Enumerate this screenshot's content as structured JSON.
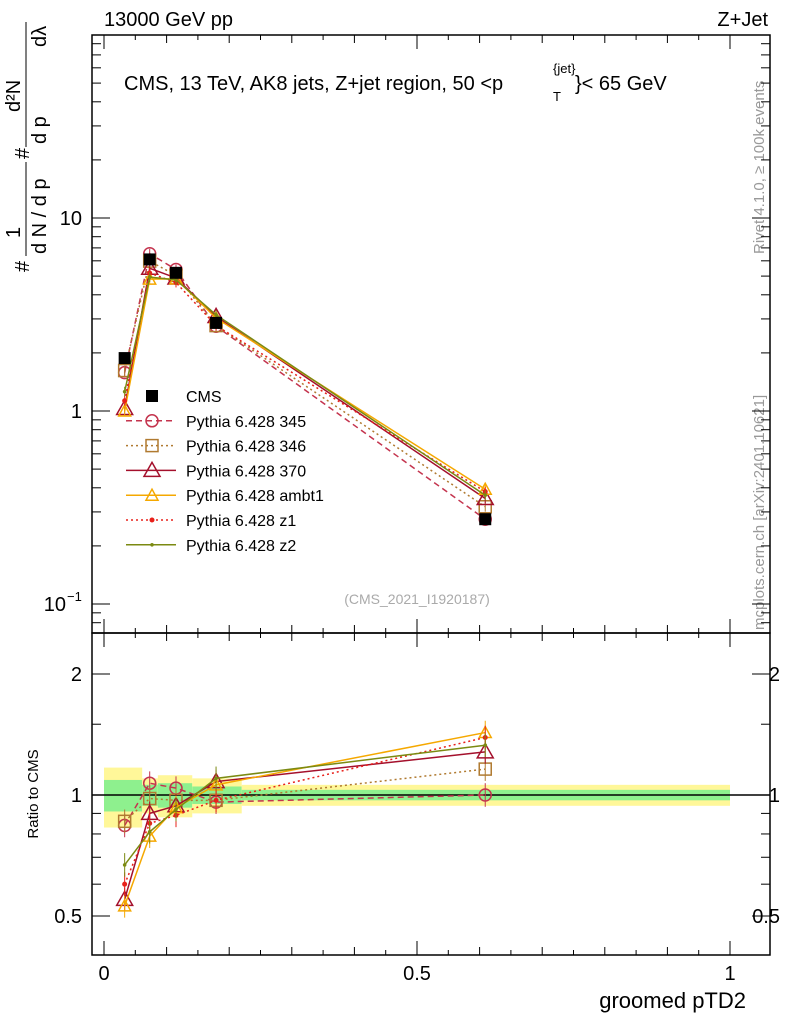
{
  "header": {
    "left": "13000 GeV pp",
    "right": "Z+Jet"
  },
  "side_text": {
    "rivet": "Rivet 4.1.0, ≥ 100k events",
    "mcplots": "mcplots.cern.ch [arXiv:2401.10621]"
  },
  "chart_data": {
    "type": "line",
    "title": "CMS, 13 TeV, AK8 jets, Z+jet region, 50 <p_T^{jet}< 65 GeV",
    "title_parts": {
      "main": "CMS, 13 TeV, AK8 jets, Z+jet region, 50 <p",
      "sup": "{jet}",
      "sub": "T",
      "end": "}< 65 GeV"
    },
    "watermark": "(CMS_2021_I1920187)",
    "xlabel": "groomed pTD2",
    "ylabel": "1/dN/dp_T d²N/dp_T dλ",
    "ylabel_parts": {
      "hash": "#",
      "one": "1",
      "den": "d N / d p",
      "sub_T": "T",
      "num": "d²N",
      "den2": "d p",
      "dl": "dλ"
    },
    "ratio_ylabel": "Ratio to CMS",
    "xlim": [
      -0.02,
      1.02
    ],
    "ylim": [
      0.0708,
      88.7
    ],
    "yscale": "log",
    "ratio_ylim": [
      0.4,
      2.52
    ],
    "x_ticks": [
      {
        "v": 0,
        "label": "0"
      },
      {
        "v": 0.5,
        "label": "0.5"
      },
      {
        "v": 1,
        "label": "1"
      }
    ],
    "y_ticks": [
      {
        "v": 10,
        "label": "10"
      },
      {
        "v": 1,
        "label": "1"
      },
      {
        "v": 0.1,
        "label": "10",
        "exp": "−1"
      }
    ],
    "ratio_ticks": [
      {
        "v": 2,
        "label": "2"
      },
      {
        "v": 1,
        "label": "1"
      },
      {
        "v": 0.5,
        "label": "0.5"
      }
    ],
    "bin_edges": [
      0,
      0.061,
      0.086,
      0.141,
      0.22,
      1.0
    ],
    "x": [
      0.033,
      0.073,
      0.115,
      0.179,
      0.609
    ],
    "band_total_rel": [
      0.17,
      0.1,
      0.12,
      0.1,
      0.06
    ],
    "band_stat_rel": [
      0.09,
      0.06,
      0.07,
      0.05,
      0.03
    ],
    "legend_placement": "center-left",
    "series": [
      {
        "name": "CMS",
        "color": "#000000",
        "dash": "",
        "marker": "square-filled",
        "values": [
          1.88,
          6.1,
          5.2,
          2.86,
          0.275
        ],
        "ratio": [
          1,
          1,
          1,
          1,
          1
        ]
      },
      {
        "name": "Pythia 6.428 345",
        "color": "#c4344e",
        "dash": "6,4",
        "marker": "circle",
        "values": [
          1.58,
          6.53,
          5.41,
          2.75,
          0.275
        ],
        "ratio": [
          0.84,
          1.07,
          1.04,
          0.96,
          1.0
        ]
      },
      {
        "name": "Pythia 6.428 346",
        "color": "#b07a30",
        "dash": "2,3",
        "marker": "square",
        "values": [
          1.62,
          5.98,
          5.04,
          2.77,
          0.319
        ],
        "ratio": [
          0.86,
          0.98,
          0.97,
          0.97,
          1.16
        ]
      },
      {
        "name": "Pythia 6.428 370",
        "color": "#a4102c",
        "dash": "",
        "marker": "triangle",
        "values": [
          1.03,
          5.49,
          4.89,
          3.09,
          0.352
        ],
        "ratio": [
          0.55,
          0.9,
          0.94,
          1.08,
          1.28
        ]
      },
      {
        "name": "Pythia 6.428 ambt1",
        "color": "#f5a800",
        "dash": "",
        "marker": "triangle-small",
        "values": [
          1.0,
          4.82,
          4.84,
          3.03,
          0.393
        ],
        "ratio": [
          0.53,
          0.79,
          0.93,
          1.06,
          1.43
        ]
      },
      {
        "name": "Pythia 6.428 z1",
        "color": "#e8201a",
        "dash": "2,3",
        "marker": "dot",
        "values": [
          1.13,
          5.19,
          4.63,
          2.77,
          0.382
        ],
        "ratio": [
          0.6,
          0.85,
          0.89,
          0.97,
          1.39
        ]
      },
      {
        "name": "Pythia 6.428 z2",
        "color": "#7b8a12",
        "dash": "",
        "marker": "dot-small",
        "values": [
          1.26,
          4.94,
          4.78,
          3.15,
          0.366
        ],
        "ratio": [
          0.67,
          0.81,
          0.92,
          1.1,
          1.33
        ]
      }
    ]
  }
}
